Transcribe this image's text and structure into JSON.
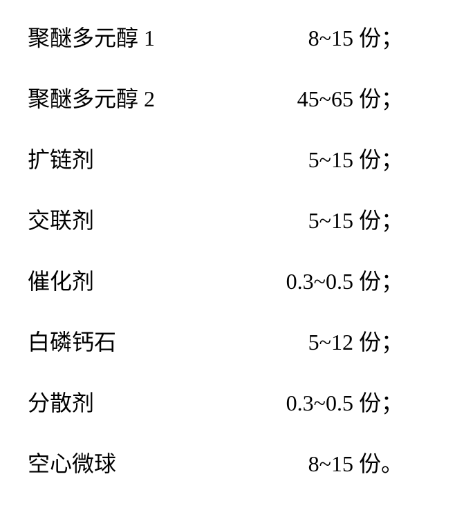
{
  "rows": [
    {
      "label": "聚醚多元醇 1",
      "value": "8~15 份；"
    },
    {
      "label": "聚醚多元醇 2",
      "value": "45~65 份；"
    },
    {
      "label": "扩链剂",
      "value": "5~15 份；"
    },
    {
      "label": "交联剂",
      "value": "5~15 份；"
    },
    {
      "label": "催化剂",
      "value": "0.3~0.5 份；"
    },
    {
      "label": "白磷钙石",
      "value": "5~12 份；"
    },
    {
      "label": "分散剂",
      "value": "0.3~0.5 份；"
    },
    {
      "label": "空心微球",
      "value": "8~15 份。"
    }
  ],
  "typography": {
    "font_family": "SimSun",
    "font_size_pt": 24,
    "color": "#000000",
    "background": "#ffffff"
  }
}
